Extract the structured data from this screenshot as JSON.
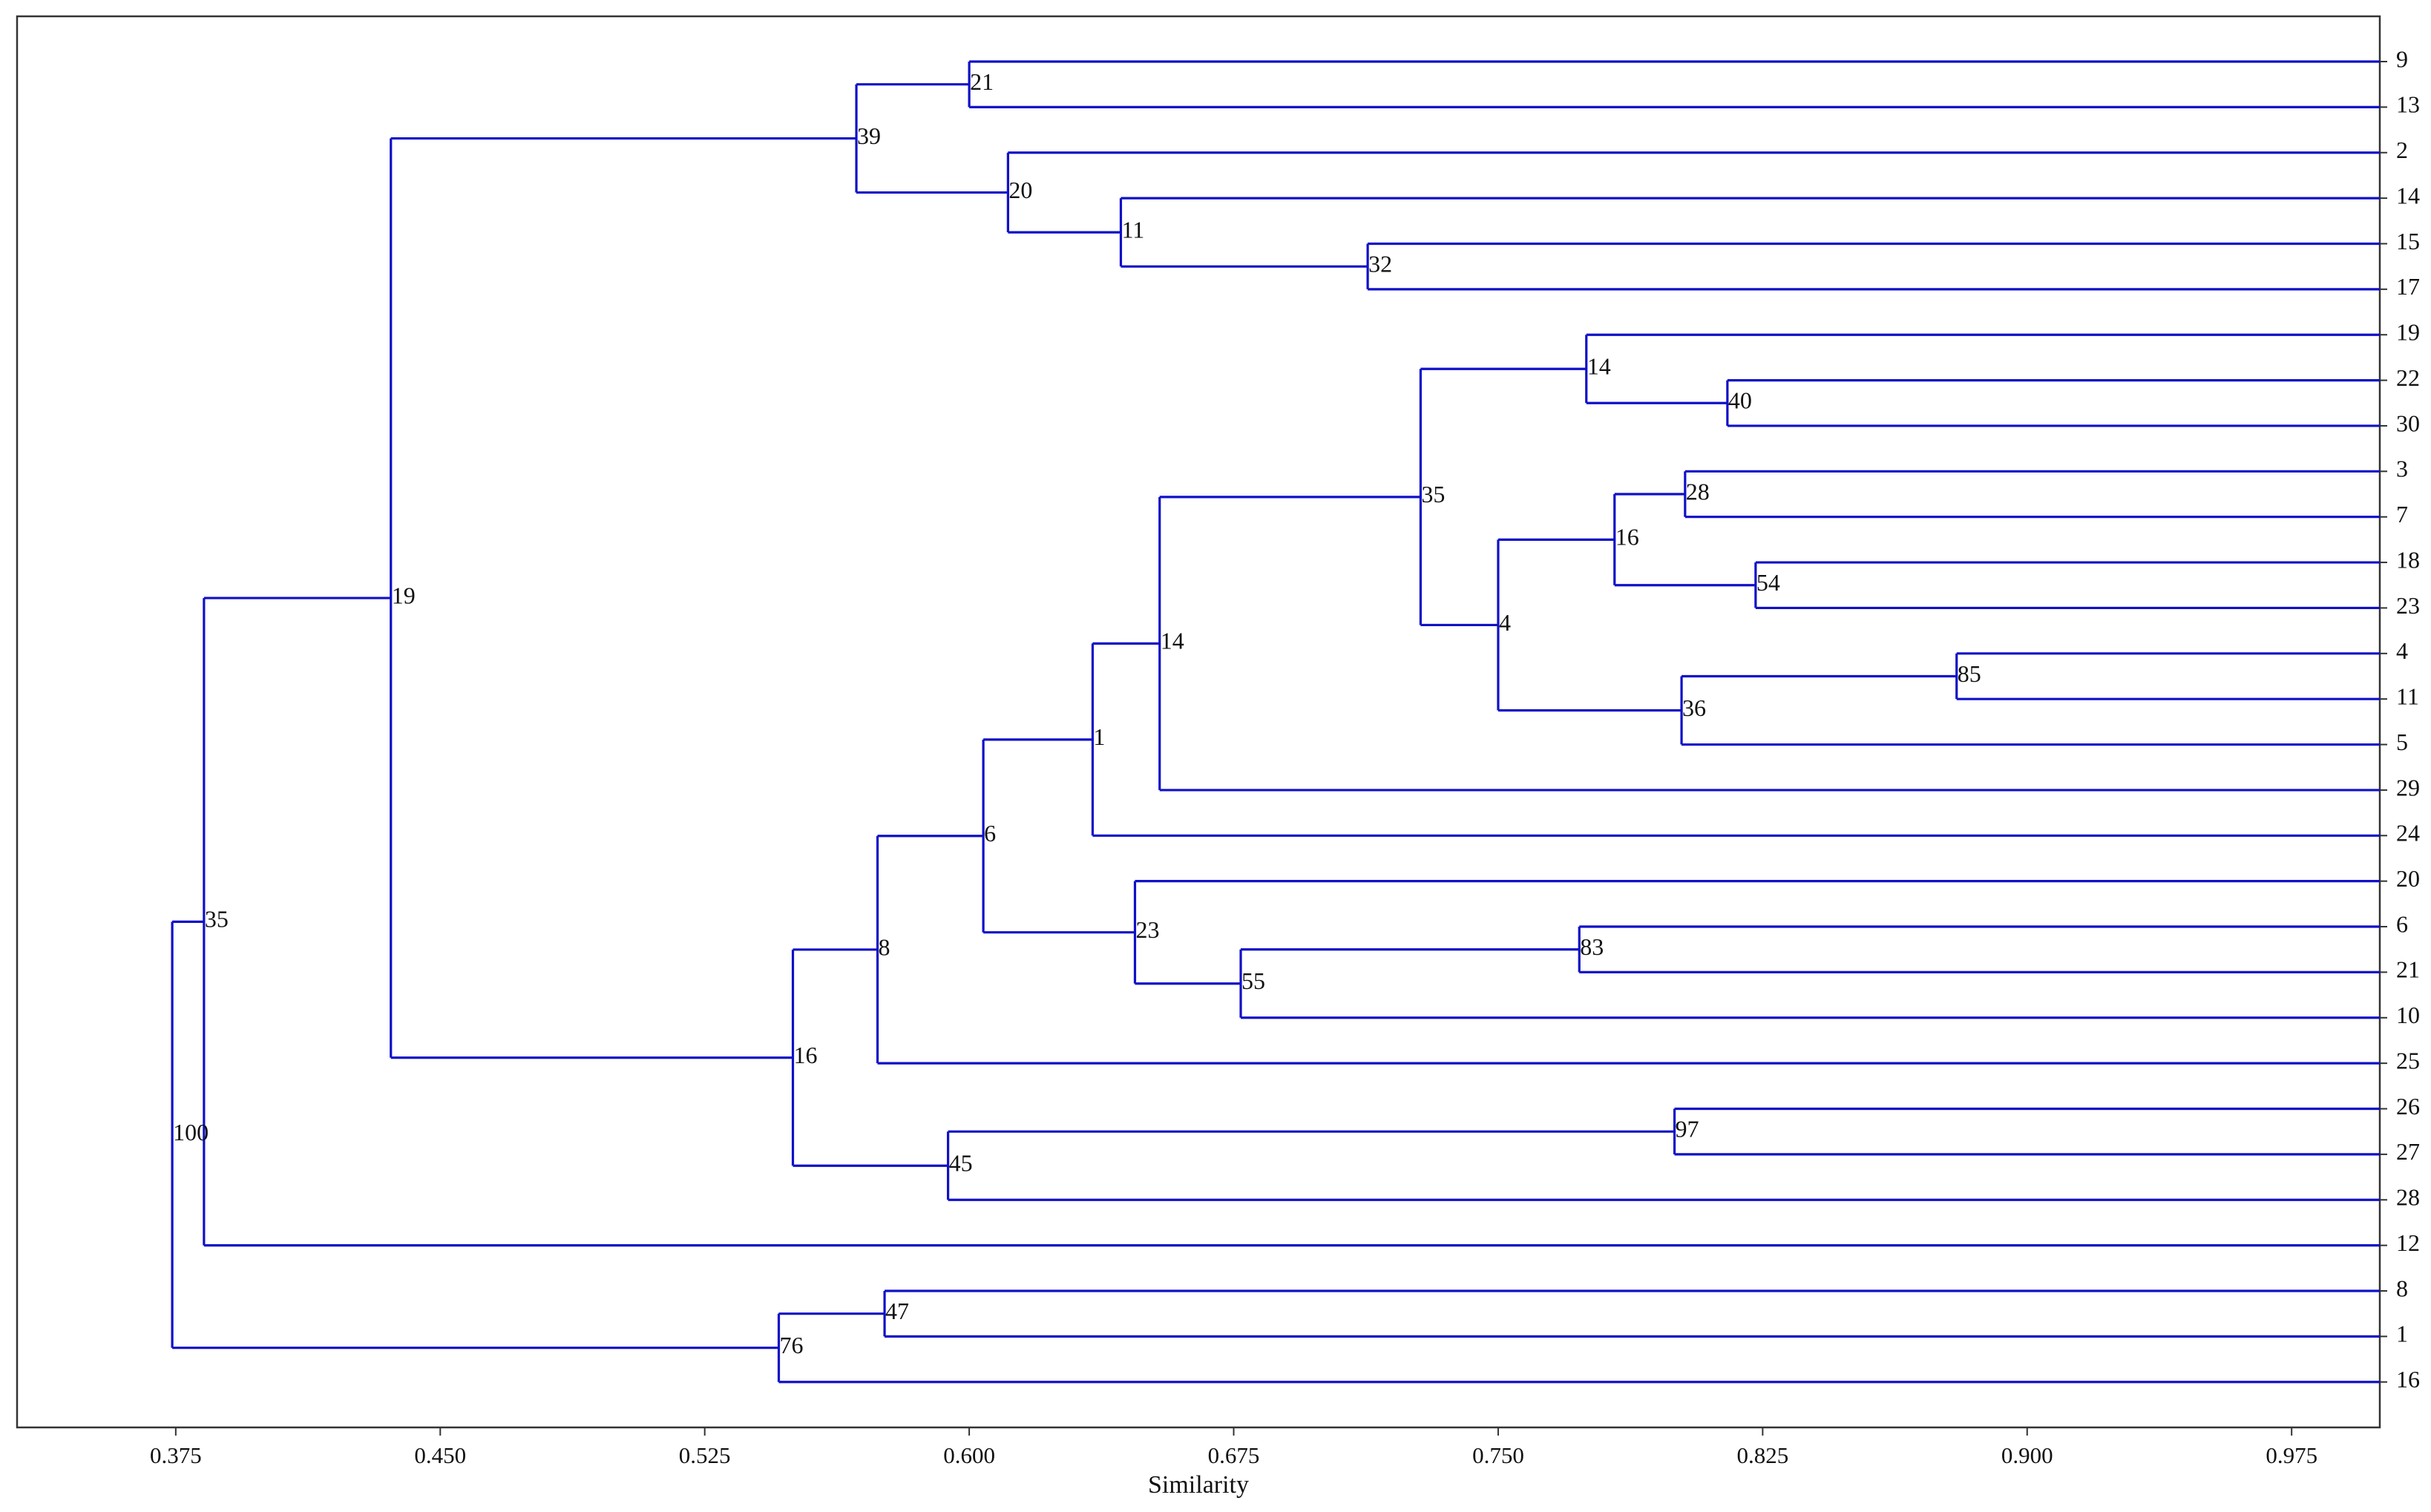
{
  "chart_data": {
    "type": "dendrogram",
    "title": "",
    "xlabel": "Similarity",
    "ylabel": "",
    "xlim": [
      0.33,
      1.0
    ],
    "xticks": [
      "0.375",
      "0.450",
      "0.525",
      "0.600",
      "0.675",
      "0.750",
      "0.825",
      "0.900",
      "0.975"
    ],
    "leaf_order": [
      "9",
      "13",
      "2",
      "14",
      "15",
      "17",
      "19",
      "22",
      "30",
      "3",
      "7",
      "18",
      "23",
      "4",
      "11",
      "5",
      "29",
      "24",
      "20",
      "6",
      "21",
      "10",
      "25",
      "26",
      "27",
      "28",
      "12",
      "8",
      "1",
      "16"
    ],
    "line_color": "#1010c8",
    "nodes": [
      {
        "id": "n1",
        "similarity": 0.6,
        "label": "21",
        "children": [
          "L:9",
          "L:13"
        ]
      },
      {
        "id": "n3",
        "similarity": 0.713,
        "label": "32",
        "children": [
          "L:15",
          "L:17"
        ]
      },
      {
        "id": "n4",
        "similarity": 0.643,
        "label": "11",
        "children": [
          "L:14",
          "N:n3"
        ]
      },
      {
        "id": "n5",
        "similarity": 0.611,
        "label": "20",
        "children": [
          "L:2",
          "N:n4"
        ]
      },
      {
        "id": "n6",
        "similarity": 0.568,
        "label": "39",
        "children": [
          "N:n1",
          "N:n5"
        ]
      },
      {
        "id": "n7",
        "similarity": 0.815,
        "label": "40",
        "children": [
          "L:22",
          "L:30"
        ]
      },
      {
        "id": "n8",
        "similarity": 0.775,
        "label": "14",
        "children": [
          "L:19",
          "N:n7"
        ]
      },
      {
        "id": "n9",
        "similarity": 0.803,
        "label": "28",
        "children": [
          "L:3",
          "L:7"
        ]
      },
      {
        "id": "n10",
        "similarity": 0.823,
        "label": "54",
        "children": [
          "L:18",
          "L:23"
        ]
      },
      {
        "id": "n11",
        "similarity": 0.783,
        "label": "16",
        "children": [
          "N:n9",
          "N:n10"
        ]
      },
      {
        "id": "n12",
        "similarity": 0.88,
        "label": "85",
        "children": [
          "L:4",
          "L:11"
        ]
      },
      {
        "id": "n13",
        "similarity": 0.802,
        "label": "36",
        "children": [
          "N:n12",
          "L:5"
        ]
      },
      {
        "id": "n14",
        "similarity": 0.75,
        "label": "4",
        "children": [
          "N:n11",
          "N:n13"
        ]
      },
      {
        "id": "n15",
        "similarity": 0.728,
        "label": "35",
        "children": [
          "N:n8",
          "N:n14"
        ]
      },
      {
        "id": "n16",
        "similarity": 0.654,
        "label": "14",
        "children": [
          "N:n15",
          "L:29"
        ]
      },
      {
        "id": "n17",
        "similarity": 0.635,
        "label": "1",
        "children": [
          "N:n16",
          "L:24"
        ]
      },
      {
        "id": "n18",
        "similarity": 0.773,
        "label": "83",
        "children": [
          "L:6",
          "L:21"
        ]
      },
      {
        "id": "n19",
        "similarity": 0.677,
        "label": "55",
        "children": [
          "N:n18",
          "L:10"
        ]
      },
      {
        "id": "n20",
        "similarity": 0.647,
        "label": "23",
        "children": [
          "L:20",
          "N:n19"
        ]
      },
      {
        "id": "n21",
        "similarity": 0.604,
        "label": "6",
        "children": [
          "N:n17",
          "N:n20"
        ]
      },
      {
        "id": "n22",
        "similarity": 0.574,
        "label": "8",
        "children": [
          "N:n21",
          "L:25"
        ]
      },
      {
        "id": "n23",
        "similarity": 0.8,
        "label": "97",
        "children": [
          "L:26",
          "L:27"
        ]
      },
      {
        "id": "n24",
        "similarity": 0.594,
        "label": "45",
        "children": [
          "N:n23",
          "L:28"
        ]
      },
      {
        "id": "n25",
        "similarity": 0.55,
        "label": "16",
        "children": [
          "N:n22",
          "N:n24"
        ]
      },
      {
        "id": "n26",
        "similarity": 0.436,
        "label": "19",
        "children": [
          "N:n6",
          "N:n25"
        ]
      },
      {
        "id": "n27",
        "similarity": 0.383,
        "label": "35",
        "children": [
          "N:n26",
          "L:12"
        ]
      },
      {
        "id": "n28",
        "similarity": 0.576,
        "label": "47",
        "children": [
          "L:8",
          "L:1"
        ]
      },
      {
        "id": "n29",
        "similarity": 0.546,
        "label": "76",
        "children": [
          "N:n28",
          "L:16"
        ]
      },
      {
        "id": "n30",
        "similarity": 0.374,
        "label": "100",
        "children": [
          "N:n27",
          "N:n29"
        ]
      }
    ]
  }
}
